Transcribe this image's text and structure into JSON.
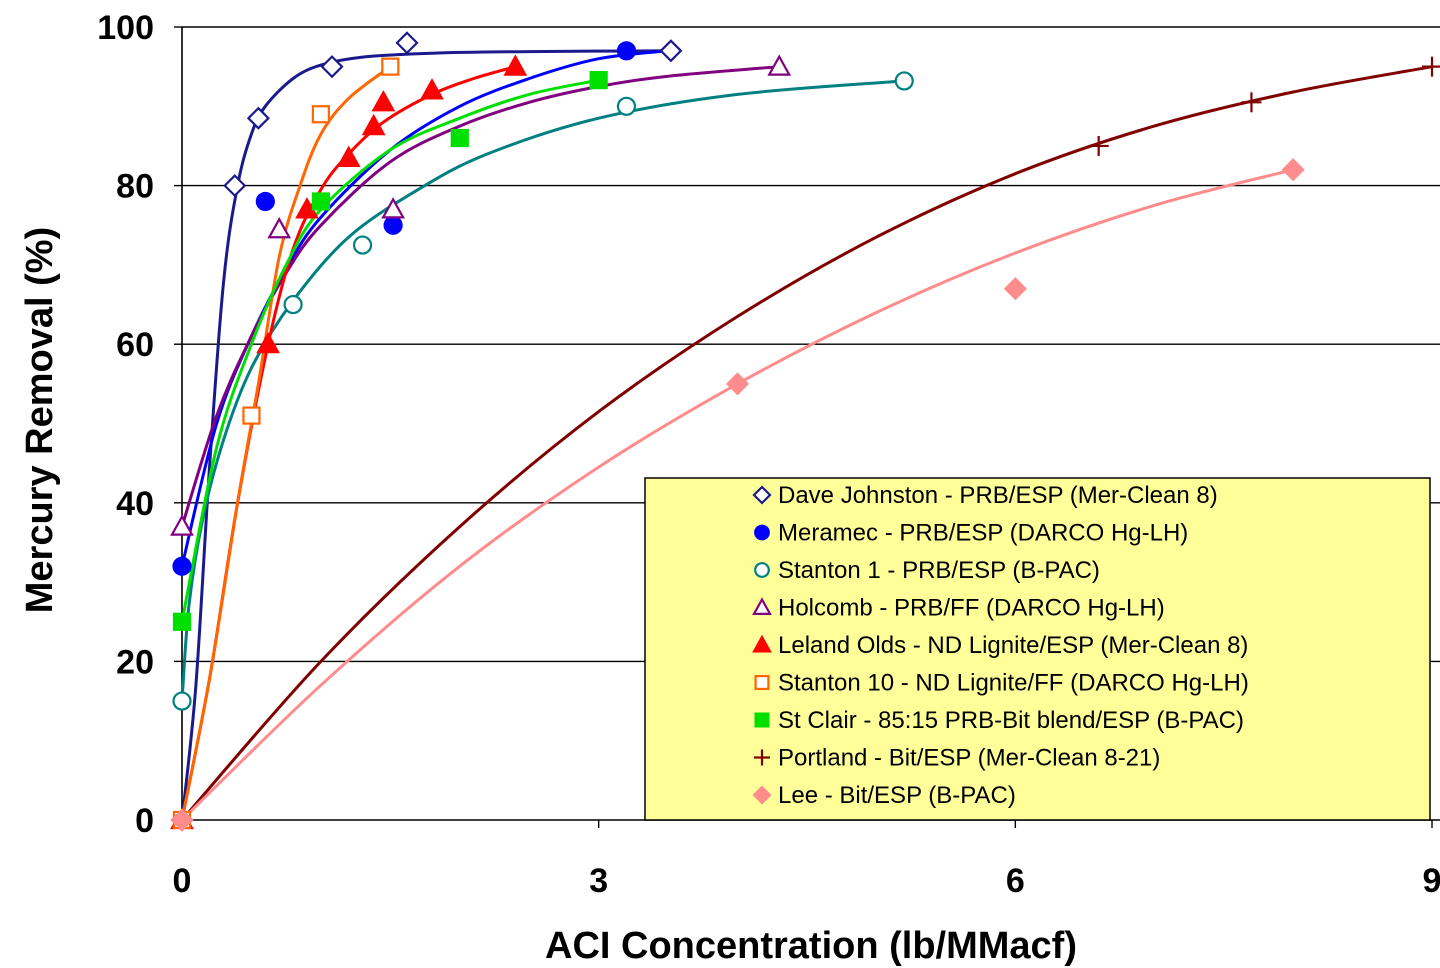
{
  "chart_data": {
    "type": "scatter",
    "xlabel": "ACI Concentration (lb/MMacf)",
    "ylabel": "Mercury Removal (%)",
    "xlim": [
      0,
      9
    ],
    "ylim": [
      0,
      100
    ],
    "xticks": [
      "0",
      "3",
      "6",
      "9"
    ],
    "yticks": [
      "0",
      "20",
      "40",
      "60",
      "80",
      "100"
    ],
    "grid": "horizontal",
    "legend_position": "bottom-right",
    "legend_background": "#ffff99",
    "series": [
      {
        "name": "Dave Johnston - PRB/ESP (Mer-Clean 8)",
        "color": "#1a1a8c",
        "marker": "diamond-open",
        "points": [
          [
            0,
            0
          ],
          [
            0.38,
            80
          ],
          [
            0.55,
            88.5
          ],
          [
            1.08,
            95
          ],
          [
            1.62,
            98
          ],
          [
            3.52,
            97
          ]
        ],
        "curve": [
          [
            0,
            0
          ],
          [
            0.1,
            17
          ],
          [
            0.2,
            45
          ],
          [
            0.3,
            68
          ],
          [
            0.4,
            80
          ],
          [
            0.5,
            86.5
          ],
          [
            0.6,
            90
          ],
          [
            0.8,
            93.5
          ],
          [
            1.0,
            95.2
          ],
          [
            1.3,
            96.2
          ],
          [
            1.8,
            96.7
          ],
          [
            2.5,
            96.9
          ],
          [
            3.52,
            97
          ]
        ]
      },
      {
        "name": "Meramec - PRB/ESP (DARCO Hg-LH)",
        "color": "#0000ff",
        "marker": "circle-filled",
        "points": [
          [
            0,
            32
          ],
          [
            0.6,
            78
          ],
          [
            1.52,
            75
          ],
          [
            3.2,
            97
          ]
        ],
        "curve": [
          [
            0,
            32
          ],
          [
            0.25,
            50
          ],
          [
            0.5,
            61
          ],
          [
            0.75,
            69.5
          ],
          [
            1.0,
            76
          ],
          [
            1.5,
            84.5
          ],
          [
            2.0,
            90
          ],
          [
            2.5,
            93.5
          ],
          [
            3.0,
            96
          ],
          [
            3.5,
            97
          ]
        ]
      },
      {
        "name": "Stanton 1 - PRB/ESP (B-PAC)",
        "color": "#008080",
        "marker": "circle-open",
        "points": [
          [
            0,
            15
          ],
          [
            0.8,
            65
          ],
          [
            1.3,
            72.5
          ],
          [
            3.2,
            90
          ],
          [
            5.2,
            93.2
          ]
        ],
        "curve": [
          [
            0,
            15
          ],
          [
            0.05,
            27
          ],
          [
            0.15,
            38
          ],
          [
            0.3,
            48
          ],
          [
            0.5,
            57
          ],
          [
            0.8,
            65.5
          ],
          [
            1.2,
            73.5
          ],
          [
            1.7,
            79.5
          ],
          [
            2.2,
            84
          ],
          [
            3.0,
            88.5
          ],
          [
            4.0,
            91.5
          ],
          [
            5.2,
            93.2
          ]
        ]
      },
      {
        "name": "Holcomb - PRB/FF (DARCO Hg-LH)",
        "color": "#800080",
        "marker": "triangle-open",
        "points": [
          [
            0,
            37
          ],
          [
            0.7,
            74.5
          ],
          [
            1.52,
            77
          ],
          [
            4.3,
            95
          ]
        ],
        "curve": [
          [
            0,
            37
          ],
          [
            0.25,
            51
          ],
          [
            0.5,
            61
          ],
          [
            0.75,
            69
          ],
          [
            1.0,
            75
          ],
          [
            1.5,
            83
          ],
          [
            2.0,
            87.5
          ],
          [
            2.5,
            90.5
          ],
          [
            3.0,
            92.5
          ],
          [
            3.5,
            93.8
          ],
          [
            4.3,
            95
          ]
        ]
      },
      {
        "name": "Leland Olds - ND Lignite/ESP (Mer-Clean 8)",
        "color": "#ff0000",
        "marker": "triangle-filled",
        "points": [
          [
            0,
            0
          ],
          [
            0.62,
            60
          ],
          [
            0.9,
            77
          ],
          [
            1.2,
            83.5
          ],
          [
            1.38,
            87.5
          ],
          [
            1.45,
            90.5
          ],
          [
            1.8,
            92
          ],
          [
            2.4,
            95
          ]
        ],
        "curve": [
          [
            0,
            0
          ],
          [
            0.2,
            18
          ],
          [
            0.4,
            40
          ],
          [
            0.62,
            60
          ],
          [
            0.8,
            72
          ],
          [
            1.0,
            79.5
          ],
          [
            1.2,
            84
          ],
          [
            1.45,
            88
          ],
          [
            1.8,
            91.5
          ],
          [
            2.1,
            93.5
          ],
          [
            2.4,
            95
          ]
        ]
      },
      {
        "name": "Stanton 10 - ND Lignite/FF (DARCO Hg-LH)",
        "color": "#ff6600",
        "marker": "square-open",
        "points": [
          [
            0,
            0
          ],
          [
            0.5,
            51
          ],
          [
            1.0,
            89
          ],
          [
            1.5,
            95
          ]
        ],
        "curve": [
          [
            0,
            0
          ],
          [
            0.2,
            18
          ],
          [
            0.4,
            40
          ],
          [
            0.55,
            55
          ],
          [
            0.7,
            71
          ],
          [
            0.85,
            80
          ],
          [
            1.0,
            86.5
          ],
          [
            1.2,
            91
          ],
          [
            1.5,
            95
          ]
        ]
      },
      {
        "name": "St Clair - 85:15 PRB-Bit blend/ESP (B-PAC)",
        "color": "#00e000",
        "marker": "square-filled",
        "points": [
          [
            0,
            25
          ],
          [
            1.0,
            78
          ],
          [
            2.0,
            86
          ],
          [
            3.0,
            93.3
          ]
        ],
        "curve": [
          [
            0,
            25
          ],
          [
            0.25,
            47
          ],
          [
            0.5,
            60
          ],
          [
            0.75,
            70
          ],
          [
            1.0,
            77
          ],
          [
            1.5,
            84.5
          ],
          [
            2.0,
            88.5
          ],
          [
            2.5,
            91.5
          ],
          [
            3.0,
            93.3
          ]
        ]
      },
      {
        "name": "Portland - Bit/ESP (Mer-Clean 8-21)",
        "color": "#800000",
        "marker": "plus",
        "points": [
          [
            0,
            0
          ],
          [
            6.6,
            85
          ],
          [
            7.7,
            90.5
          ],
          [
            9.0,
            95
          ]
        ],
        "curve": [
          [
            0,
            0
          ],
          [
            1.0,
            20
          ],
          [
            2.0,
            37
          ],
          [
            3.0,
            51.5
          ],
          [
            4.0,
            63.5
          ],
          [
            5.0,
            73.5
          ],
          [
            6.0,
            81.5
          ],
          [
            7.0,
            87.5
          ],
          [
            8.0,
            91.8
          ],
          [
            9.0,
            95
          ]
        ]
      },
      {
        "name": "Lee - Bit/ESP (B-PAC)",
        "color": "#ff8c8c",
        "marker": "diamond-filled",
        "points": [
          [
            0,
            0
          ],
          [
            4.0,
            55
          ],
          [
            6.0,
            67
          ],
          [
            8.0,
            82
          ]
        ],
        "curve": [
          [
            0,
            0
          ],
          [
            1.0,
            17
          ],
          [
            2.0,
            32
          ],
          [
            3.0,
            44.5
          ],
          [
            4.0,
            55
          ],
          [
            5.0,
            64
          ],
          [
            6.0,
            71.5
          ],
          [
            7.0,
            77.5
          ],
          [
            8.0,
            82
          ]
        ]
      }
    ]
  }
}
